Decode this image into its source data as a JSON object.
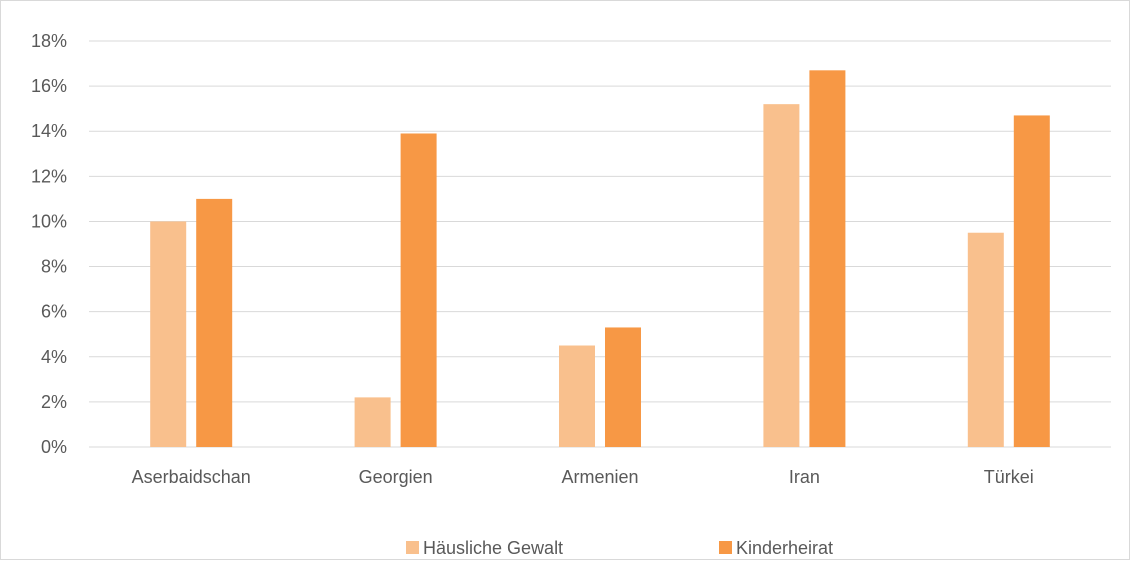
{
  "chart_data": {
    "type": "bar",
    "categories": [
      "Aserbaidschan",
      "Georgien",
      "Armenien",
      "Iran",
      "Türkei"
    ],
    "series": [
      {
        "name": "Häusliche Gewalt",
        "color": "#f9c08d",
        "values": [
          10.0,
          2.2,
          4.5,
          15.2,
          9.5
        ]
      },
      {
        "name": "Kinderheirat",
        "color": "#f79845",
        "values": [
          11.0,
          13.9,
          5.3,
          16.7,
          14.7
        ]
      }
    ],
    "ylim": [
      0,
      18
    ],
    "y_ticks": [
      "0%",
      "2%",
      "4%",
      "6%",
      "8%",
      "10%",
      "12%",
      "14%",
      "16%",
      "18%"
    ],
    "y_unit": "%",
    "grid": true,
    "legend_position": "bottom",
    "gridline_color": "#d9d9d9",
    "text_color": "#595959"
  }
}
